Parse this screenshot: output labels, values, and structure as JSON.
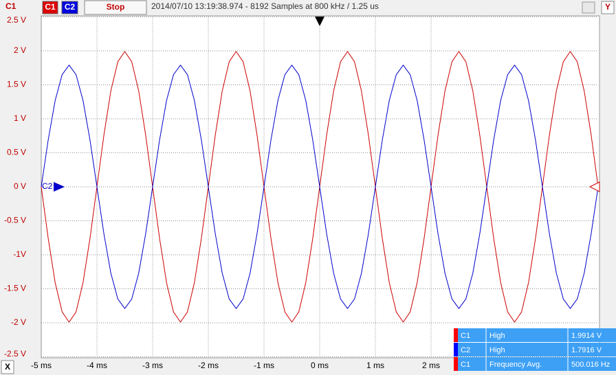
{
  "toolbar": {
    "channel": "C1",
    "c1_button": "C1",
    "c2_button": "C2",
    "stop_button": "Stop",
    "status": "2014/07/10 13:19:38.974 - 8192 Samples at 800 kHz / 1.25 us",
    "y_button": "Y"
  },
  "x_button": "X",
  "marker_label": "C2",
  "measurements": {
    "rows": [
      [
        "C1",
        "High",
        "1.9914 V"
      ],
      [
        "C2",
        "High",
        "1.7916 V"
      ],
      [
        "C1",
        "Frequency Avg.",
        "500.016 Hz"
      ]
    ]
  },
  "chart_data": {
    "type": "line",
    "x": [
      -5,
      -4.875,
      -4.75,
      -4.625,
      -4.5,
      -4.375,
      -4.25,
      -4.125,
      -4,
      -3.875,
      -3.75,
      -3.625,
      -3.5,
      -3.375,
      -3.25,
      -3.125,
      -3,
      -2.875,
      -2.75,
      -2.625,
      -2.5,
      -2.375,
      -2.25,
      -2.125,
      -2,
      -1.875,
      -1.75,
      -1.625,
      -1.5,
      -1.375,
      -1.25,
      -1.125,
      -1,
      -0.875,
      -0.75,
      -0.625,
      -0.5,
      -0.375,
      -0.25,
      -0.125,
      0,
      0.125,
      0.25,
      0.375,
      0.5,
      0.625,
      0.75,
      0.875,
      1,
      1.125,
      1.25,
      1.375,
      1.5,
      1.625,
      1.75,
      1.875,
      2,
      2.125,
      2.25,
      2.375,
      2.5,
      2.625,
      2.75,
      2.875,
      3,
      3.125,
      3.25,
      3.375,
      3.5,
      3.625,
      3.75,
      3.875,
      4,
      4.125,
      4.25,
      4.375,
      4.5,
      4.625,
      4.75,
      4.875,
      5
    ],
    "series": [
      {
        "name": "C1",
        "color": "#cc0000",
        "values": [
          0,
          -0.76,
          -1.41,
          -1.84,
          -1.99,
          -1.84,
          -1.41,
          -0.76,
          0,
          0.76,
          1.41,
          1.84,
          1.99,
          1.84,
          1.41,
          0.76,
          0,
          -0.76,
          -1.41,
          -1.84,
          -1.99,
          -1.84,
          -1.41,
          -0.76,
          0,
          0.76,
          1.41,
          1.84,
          1.99,
          1.84,
          1.41,
          0.76,
          0,
          -0.76,
          -1.41,
          -1.84,
          -1.99,
          -1.84,
          -1.41,
          -0.76,
          0,
          0.76,
          1.41,
          1.84,
          1.99,
          1.84,
          1.41,
          0.76,
          0,
          -0.76,
          -1.41,
          -1.84,
          -1.99,
          -1.84,
          -1.41,
          -0.76,
          0,
          0.76,
          1.41,
          1.84,
          1.99,
          1.84,
          1.41,
          0.76,
          0,
          -0.76,
          -1.41,
          -1.84,
          -1.99,
          -1.84,
          -1.41,
          -0.76,
          0,
          0.76,
          1.41,
          1.84,
          1.99,
          1.84,
          1.41,
          0.76,
          0
        ]
      },
      {
        "name": "C2",
        "color": "#0000cc",
        "values": [
          0,
          0.69,
          1.27,
          1.65,
          1.79,
          1.65,
          1.27,
          0.69,
          0,
          -0.69,
          -1.27,
          -1.65,
          -1.79,
          -1.65,
          -1.27,
          -0.69,
          0,
          0.69,
          1.27,
          1.65,
          1.79,
          1.65,
          1.27,
          0.69,
          0,
          -0.69,
          -1.27,
          -1.65,
          -1.79,
          -1.65,
          -1.27,
          -0.69,
          0,
          0.69,
          1.27,
          1.65,
          1.79,
          1.65,
          1.27,
          0.69,
          0,
          -0.69,
          -1.27,
          -1.65,
          -1.79,
          -1.65,
          -1.27,
          -0.69,
          0,
          0.69,
          1.27,
          1.65,
          1.79,
          1.65,
          1.27,
          0.69,
          0,
          -0.69,
          -1.27,
          -1.65,
          -1.79,
          -1.65,
          -1.27,
          -0.69,
          0,
          0.69,
          1.27,
          1.65,
          1.79,
          1.65,
          1.27,
          0.69,
          0,
          -0.69,
          -1.27,
          -1.65,
          -1.79,
          -1.65,
          -1.27,
          -0.69,
          0
        ]
      }
    ],
    "xlim": [
      -5,
      5
    ],
    "xticks": [
      {
        "value": -5,
        "label": "-5 ms"
      },
      {
        "value": -4,
        "label": "-4 ms"
      },
      {
        "value": -3,
        "label": "-3 ms"
      },
      {
        "value": -2,
        "label": "-2 ms"
      },
      {
        "value": -1,
        "label": "-1 ms"
      },
      {
        "value": 0,
        "label": "0 ms"
      },
      {
        "value": 1,
        "label": "1 ms"
      },
      {
        "value": 2,
        "label": "2 ms"
      }
    ],
    "ylim": [
      -2.5,
      2.5
    ],
    "yticks": [
      {
        "value": 2.5,
        "label": "2.5 V"
      },
      {
        "value": 2,
        "label": "2 V"
      },
      {
        "value": 1.5,
        "label": "1.5 V"
      },
      {
        "value": 1,
        "label": "1 V"
      },
      {
        "value": 0.5,
        "label": "0.5 V"
      },
      {
        "value": 0,
        "label": "0 V"
      },
      {
        "value": -0.5,
        "label": "-0.5 V"
      },
      {
        "value": -1,
        "label": "-1V"
      },
      {
        "value": -1.5,
        "label": "-1.5 V"
      },
      {
        "value": -2,
        "label": "-2 V"
      },
      {
        "value": -2.5,
        "label": "-2.5 V"
      }
    ],
    "grid": true
  }
}
